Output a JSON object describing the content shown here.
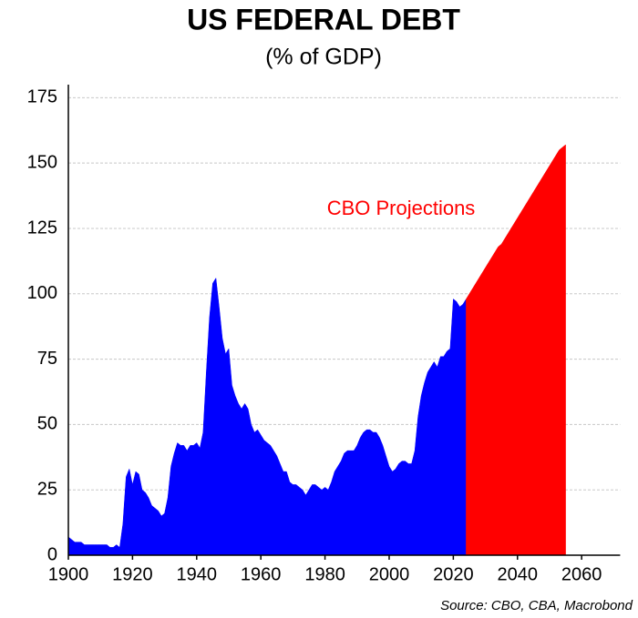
{
  "chart_data": {
    "type": "area",
    "title": "US FEDERAL DEBT",
    "subtitle": "(% of GDP)",
    "annotation": "CBO Projections",
    "source": "Source: CBO, CBA, Macrobond",
    "series": [
      {
        "color": "#0000ff",
        "x": [
          1900,
          1901,
          1902,
          1903,
          1904,
          1905,
          1906,
          1907,
          1908,
          1909,
          1910,
          1911,
          1912,
          1913,
          1914,
          1915,
          1916,
          1917,
          1918,
          1919,
          1920,
          1921,
          1922,
          1923,
          1924,
          1925,
          1926,
          1927,
          1928,
          1929,
          1930,
          1931,
          1932,
          1933,
          1934,
          1935,
          1936,
          1937,
          1938,
          1939,
          1940,
          1941,
          1942,
          1943,
          1944,
          1945,
          1946,
          1947,
          1948,
          1949,
          1950,
          1951,
          1952,
          1953,
          1954,
          1955,
          1956,
          1957,
          1958,
          1959,
          1960,
          1961,
          1962,
          1963,
          1964,
          1965,
          1966,
          1967,
          1968,
          1969,
          1970,
          1971,
          1972,
          1973,
          1974,
          1975,
          1976,
          1977,
          1978,
          1979,
          1980,
          1981,
          1982,
          1983,
          1984,
          1985,
          1986,
          1987,
          1988,
          1989,
          1990,
          1991,
          1992,
          1993,
          1994,
          1995,
          1996,
          1997,
          1998,
          1999,
          2000,
          2001,
          2002,
          2003,
          2004,
          2005,
          2006,
          2007,
          2008,
          2009,
          2010,
          2011,
          2012,
          2013,
          2014,
          2015,
          2016,
          2017,
          2018,
          2019,
          2020,
          2021,
          2022,
          2023,
          2024
        ],
        "values": [
          7,
          6,
          5,
          5,
          5,
          4,
          4,
          4,
          4,
          4,
          4,
          4,
          4,
          3,
          3,
          4,
          3,
          12,
          30,
          33,
          27,
          32,
          31,
          25,
          24,
          22,
          19,
          18,
          17,
          15,
          16,
          22,
          34,
          39,
          43,
          42,
          42,
          40,
          42,
          42,
          43,
          41,
          47,
          70,
          91,
          104,
          106,
          95,
          83,
          77,
          79,
          65,
          61,
          58,
          56,
          58,
          56,
          50,
          47,
          48,
          46,
          44,
          43,
          42,
          40,
          38,
          35,
          32,
          32,
          28,
          27,
          27,
          26,
          25,
          23,
          25,
          27,
          27,
          26,
          25,
          26,
          25,
          28,
          32,
          34,
          36,
          39,
          40,
          40,
          40,
          42,
          45,
          47,
          48,
          48,
          47,
          47,
          45,
          42,
          38,
          34,
          32,
          33,
          35,
          36,
          36,
          35,
          35,
          40,
          53,
          61,
          66,
          70,
          72,
          74,
          72,
          76,
          76,
          78,
          79,
          98,
          97,
          95,
          96,
          98
        ]
      },
      {
        "color": "#ff0000",
        "x": [
          2024,
          2025,
          2026,
          2027,
          2028,
          2029,
          2030,
          2031,
          2032,
          2033,
          2034,
          2035,
          2036,
          2037,
          2038,
          2039,
          2040,
          2041,
          2042,
          2043,
          2044,
          2045,
          2046,
          2047,
          2048,
          2049,
          2050,
          2051,
          2052,
          2053,
          2054,
          2055
        ],
        "values": [
          98,
          100,
          102,
          104,
          106,
          108,
          110,
          112,
          114,
          116,
          118,
          119,
          121,
          123,
          125,
          127,
          129,
          131,
          133,
          135,
          137,
          139,
          141,
          143,
          145,
          147,
          149,
          151,
          153,
          155,
          156,
          157
        ]
      }
    ],
    "xlim": [
      1900,
      2072
    ],
    "xticks": [
      1900,
      1920,
      1940,
      1960,
      1980,
      2000,
      2020,
      2040,
      2060
    ],
    "ylim": [
      0,
      180
    ],
    "yticks": [
      0,
      25,
      50,
      75,
      100,
      125,
      150,
      175
    ],
    "grid": true
  }
}
